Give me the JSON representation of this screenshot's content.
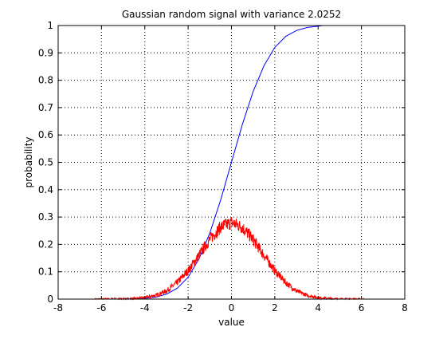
{
  "chart_data": {
    "type": "line",
    "title": "Gaussian random signal with variance 2.0252",
    "xlabel": "value",
    "ylabel": "probability",
    "xlim": [
      -8,
      8
    ],
    "ylim": [
      0,
      1
    ],
    "xticks": [
      "-8",
      "-6",
      "-4",
      "-2",
      "0",
      "2",
      "4",
      "6",
      "8"
    ],
    "yticks": [
      "0",
      "0.1",
      "0.2",
      "0.3",
      "0.4",
      "0.5",
      "0.6",
      "0.7",
      "0.8",
      "0.9",
      "1"
    ],
    "grid": true,
    "series": [
      {
        "color": "#0000ff",
        "x": [
          -6.3,
          -5.5,
          -5.0,
          -4.5,
          -4.0,
          -3.5,
          -3.0,
          -2.5,
          -2.0,
          -1.5,
          -1.0,
          -0.5,
          0.0,
          0.5,
          1.0,
          1.5,
          2.0,
          2.5,
          3.0,
          3.5,
          4.0,
          4.2
        ],
        "y": [
          0.0,
          0.0,
          0.0002,
          0.0008,
          0.0025,
          0.007,
          0.018,
          0.04,
          0.08,
          0.147,
          0.241,
          0.362,
          0.5,
          0.638,
          0.759,
          0.853,
          0.92,
          0.96,
          0.982,
          0.993,
          0.9975,
          1.0
        ]
      },
      {
        "color": "#ff0000",
        "x": [
          -6.3,
          -5.5,
          -5.0,
          -4.5,
          -4.0,
          -3.5,
          -3.0,
          -2.5,
          -2.0,
          -1.5,
          -1.0,
          -0.5,
          0.0,
          0.5,
          1.0,
          1.5,
          2.0,
          2.5,
          3.0,
          3.5,
          4.0,
          4.5,
          5.0,
          5.5,
          6.2
        ],
        "y": [
          0.0,
          0.0005,
          0.0006,
          0.002,
          0.0054,
          0.0135,
          0.03,
          0.061,
          0.104,
          0.16,
          0.218,
          0.263,
          0.28,
          0.263,
          0.218,
          0.16,
          0.104,
          0.061,
          0.03,
          0.0135,
          0.0054,
          0.002,
          0.0006,
          0.0003,
          0.0
        ]
      }
    ]
  }
}
